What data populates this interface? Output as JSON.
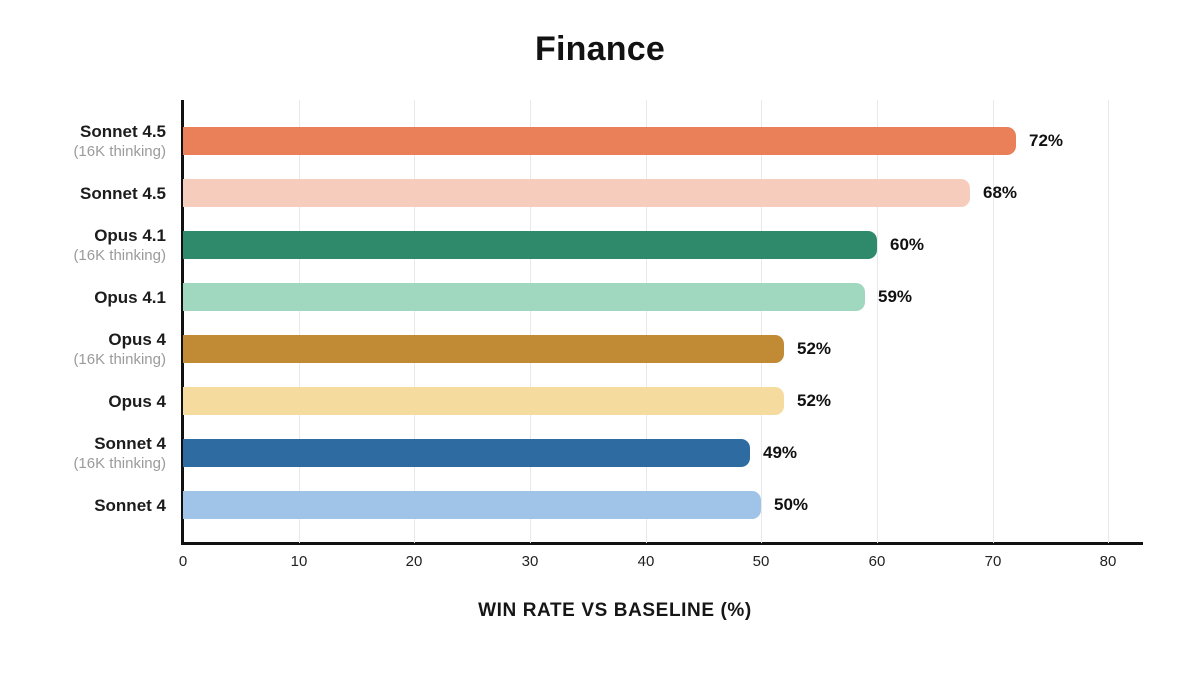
{
  "chart_data": {
    "type": "bar",
    "orientation": "horizontal",
    "title": "Finance",
    "xlabel": "WIN RATE VS BASELINE (%)",
    "xlim": [
      0,
      83
    ],
    "xticks": [
      0,
      10,
      20,
      30,
      40,
      50,
      60,
      70,
      80
    ],
    "grid": true,
    "legend": "none",
    "categories": [
      "Sonnet 4.5 (16K thinking)",
      "Sonnet 4.5",
      "Opus 4.1 (16K thinking)",
      "Opus 4.1",
      "Opus 4 (16K thinking)",
      "Opus 4",
      "Sonnet 4 (16K thinking)",
      "Sonnet 4"
    ],
    "values": [
      72,
      68,
      60,
      59,
      52,
      52,
      49,
      50
    ],
    "bars": [
      {
        "label": "Sonnet 4.5",
        "sublabel": "(16K thinking)",
        "value": 72,
        "display": "72%",
        "color": "#E9805A"
      },
      {
        "label": "Sonnet 4.5",
        "sublabel": "",
        "value": 68,
        "display": "68%",
        "color": "#F6CDBC"
      },
      {
        "label": "Opus 4.1",
        "sublabel": "(16K thinking)",
        "value": 60,
        "display": "60%",
        "color": "#2F8A6C"
      },
      {
        "label": "Opus 4.1",
        "sublabel": "",
        "value": 59,
        "display": "59%",
        "color": "#A0D8BF"
      },
      {
        "label": "Opus 4",
        "sublabel": "(16K thinking)",
        "value": 52,
        "display": "52%",
        "color": "#C08B34"
      },
      {
        "label": "Opus 4",
        "sublabel": "",
        "value": 52,
        "display": "52%",
        "color": "#F5DC9E"
      },
      {
        "label": "Sonnet 4",
        "sublabel": "(16K thinking)",
        "value": 49,
        "display": "49%",
        "color": "#2E6BA1"
      },
      {
        "label": "Sonnet 4",
        "sublabel": "",
        "value": 50,
        "display": "50%",
        "color": "#9FC4E8"
      }
    ],
    "style": {
      "axis_color": "#111111",
      "grid_color": "#e9e9e9",
      "label_color": "#1c1c1c",
      "sublabel_color": "#9b9b9b",
      "background": "#ffffff"
    }
  }
}
